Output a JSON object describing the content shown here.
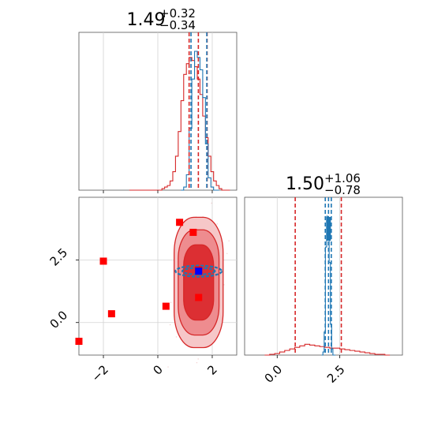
{
  "colors": {
    "red": "#d62728",
    "red_fill_light": "#f6c7c8",
    "red_fill_mid": "#ee8c8f",
    "red_fill_dark": "#dc2f33",
    "blue": "#1f77b4",
    "blue_point": "#0000ff",
    "marker_red": "#ff0000",
    "grid": "#d3d3d3"
  },
  "chart_data": [
    {
      "type": "histogram",
      "panel": "marginal-x",
      "title": {
        "value": "1.49",
        "upper": "+0.32",
        "lower": "−0.34"
      },
      "xlim": [
        -2.9,
        2.9
      ],
      "grid": true,
      "quantile_lines": {
        "red": [
          1.15,
          1.49,
          1.81
        ],
        "blue": [
          1.22,
          1.8
        ]
      },
      "series": [
        {
          "color": "red",
          "bin_centers": [
            -1.0,
            -0.9,
            -0.8,
            -0.7,
            -0.6,
            -0.5,
            -0.4,
            -0.3,
            -0.2,
            -0.1,
            0.0,
            0.1,
            0.2,
            0.3,
            0.4,
            0.5,
            0.6,
            0.7,
            0.8,
            0.9,
            1.0,
            1.1,
            1.2,
            1.3,
            1.4,
            1.5,
            1.6,
            1.7,
            1.8,
            1.9,
            2.0,
            2.1,
            2.2,
            2.3,
            2.4,
            2.5,
            2.6
          ],
          "counts": [
            0,
            0,
            0,
            0,
            0,
            0,
            0,
            0,
            0,
            0,
            0,
            0,
            1,
            2,
            3,
            6,
            12,
            22,
            38,
            58,
            75,
            82,
            86,
            84,
            80,
            72,
            62,
            48,
            34,
            22,
            12,
            6,
            3,
            1,
            0,
            0,
            0
          ]
        },
        {
          "color": "blue",
          "bin_centers": [
            0.9,
            1.0,
            1.1,
            1.2,
            1.3,
            1.4,
            1.5,
            1.6,
            1.7,
            1.8,
            1.9,
            2.0,
            2.1,
            2.2
          ],
          "counts": [
            0,
            2,
            10,
            40,
            72,
            90,
            86,
            78,
            60,
            30,
            8,
            2,
            0,
            0
          ]
        }
      ]
    },
    {
      "type": "contour",
      "panel": "joint",
      "xlim": [
        -2.9,
        2.9
      ],
      "ylim": [
        -1.3,
        5.0
      ],
      "x_ticks": [
        "−2",
        "0",
        "2"
      ],
      "y_ticks": [
        "0.0",
        "2.5"
      ],
      "grid": true,
      "red_contour_center": [
        1.5,
        1.6
      ],
      "red_contour_sigmas": [
        [
          0.9,
          2.6
        ],
        [
          0.75,
          2.1
        ],
        [
          0.55,
          1.5
        ]
      ],
      "blue_contour_center": [
        1.5,
        2.05
      ],
      "blue_contour_half_widths": [
        [
          0.85,
          0.22
        ],
        [
          0.6,
          0.13
        ]
      ],
      "blue_point": [
        1.5,
        2.05
      ],
      "red_markers": [
        [
          0.8,
          4.0
        ],
        [
          1.3,
          3.6
        ],
        [
          -2.0,
          2.45
        ],
        [
          -1.7,
          0.35
        ],
        [
          0.3,
          0.65
        ],
        [
          1.5,
          1.0
        ],
        [
          1.5,
          2.1
        ],
        [
          -2.9,
          -0.75
        ]
      ]
    },
    {
      "type": "histogram",
      "panel": "marginal-y",
      "title": {
        "value": "1.50",
        "upper": "+1.06",
        "lower": "−0.78"
      },
      "xlim": [
        -1.3,
        5.0
      ],
      "x_ticks": [
        "0.0",
        "2.5"
      ],
      "grid": true,
      "quantile_lines": {
        "red": [
          0.72,
          1.5,
          2.56
        ],
        "blue": [
          1.92,
          2.05,
          2.16
        ]
      },
      "series": [
        {
          "color": "red",
          "bin_centers": [
            -0.4,
            -0.2,
            0.0,
            0.2,
            0.4,
            0.6,
            0.8,
            1.0,
            1.2,
            1.4,
            1.6,
            1.8,
            2.0,
            2.2,
            2.4,
            2.6,
            2.8,
            3.0,
            3.2,
            3.4,
            3.6,
            3.8,
            4.0,
            4.2,
            4.4
          ],
          "counts": [
            0,
            1,
            2,
            4,
            6,
            8,
            10,
            12,
            14,
            13,
            12,
            11,
            10,
            9,
            9,
            8,
            7,
            6,
            5,
            4,
            3,
            2,
            1,
            1,
            0
          ]
        },
        {
          "color": "blue",
          "bin_centers": [
            1.8,
            1.85,
            1.9,
            1.95,
            2.0,
            2.05,
            2.1,
            2.15,
            2.2,
            2.25,
            2.3
          ],
          "counts": [
            0,
            4,
            30,
            140,
            180,
            175,
            120,
            40,
            8,
            0,
            0
          ]
        }
      ]
    }
  ]
}
